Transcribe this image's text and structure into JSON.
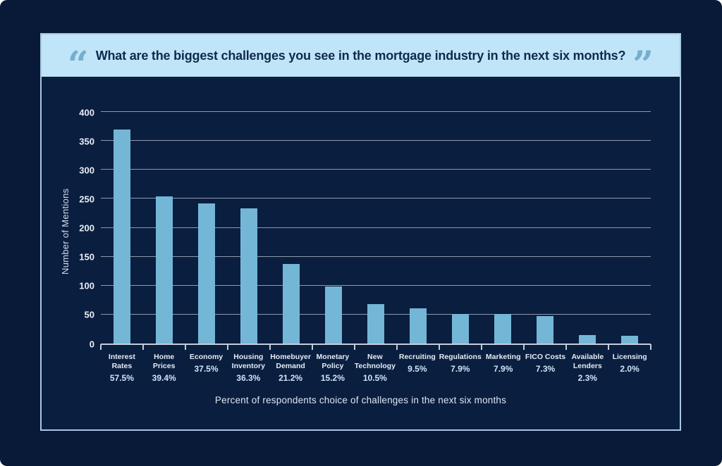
{
  "banner": {
    "open_quote": "“",
    "close_quote": "”",
    "title": "What are the biggest challenges you see in the mortgage industry in the next six months?"
  },
  "colors": {
    "poster_bg": "#081a38",
    "panel_bg": "#0a1e40",
    "frame_border": "#a7c8e0",
    "banner_bg": "#c1e5f8",
    "quote_accent": "#76aecd",
    "title_text": "#0e2a4d",
    "bar_fill": "#74b6d6",
    "gridline": "#8e99ad",
    "axis_line": "#c3cdd9",
    "tick_text": "#eaeef4"
  },
  "chart_data": {
    "type": "bar",
    "title": "What are the biggest challenges you see in the mortgage industry in the next six months?",
    "ylabel": "Number of Mentions",
    "xlabel": "Percent of respondents choice of challenges in the next six months",
    "ylim": [
      0,
      400
    ],
    "yticks": [
      0,
      50,
      100,
      150,
      200,
      250,
      300,
      350,
      400
    ],
    "grid": true,
    "legend": false,
    "categories": [
      "Interest Rates",
      "Home Prices",
      "Economy",
      "Housing Inventory",
      "Homebuyer Demand",
      "Monetary Policy",
      "New Technology",
      "Recruiting",
      "Regulations",
      "Marketing",
      "FICO Costs",
      "Available Lenders",
      "Licensing"
    ],
    "percent_labels": [
      "57.5%",
      "39.4%",
      "37.5%",
      "36.3%",
      "21.2%",
      "15.2%",
      "10.5%",
      "9.5%",
      "7.9%",
      "7.9%",
      "7.3%",
      "2.3%",
      "2.0%"
    ],
    "values": [
      370,
      254,
      242,
      234,
      137,
      98,
      68,
      61,
      51,
      51,
      47,
      15,
      13
    ]
  }
}
